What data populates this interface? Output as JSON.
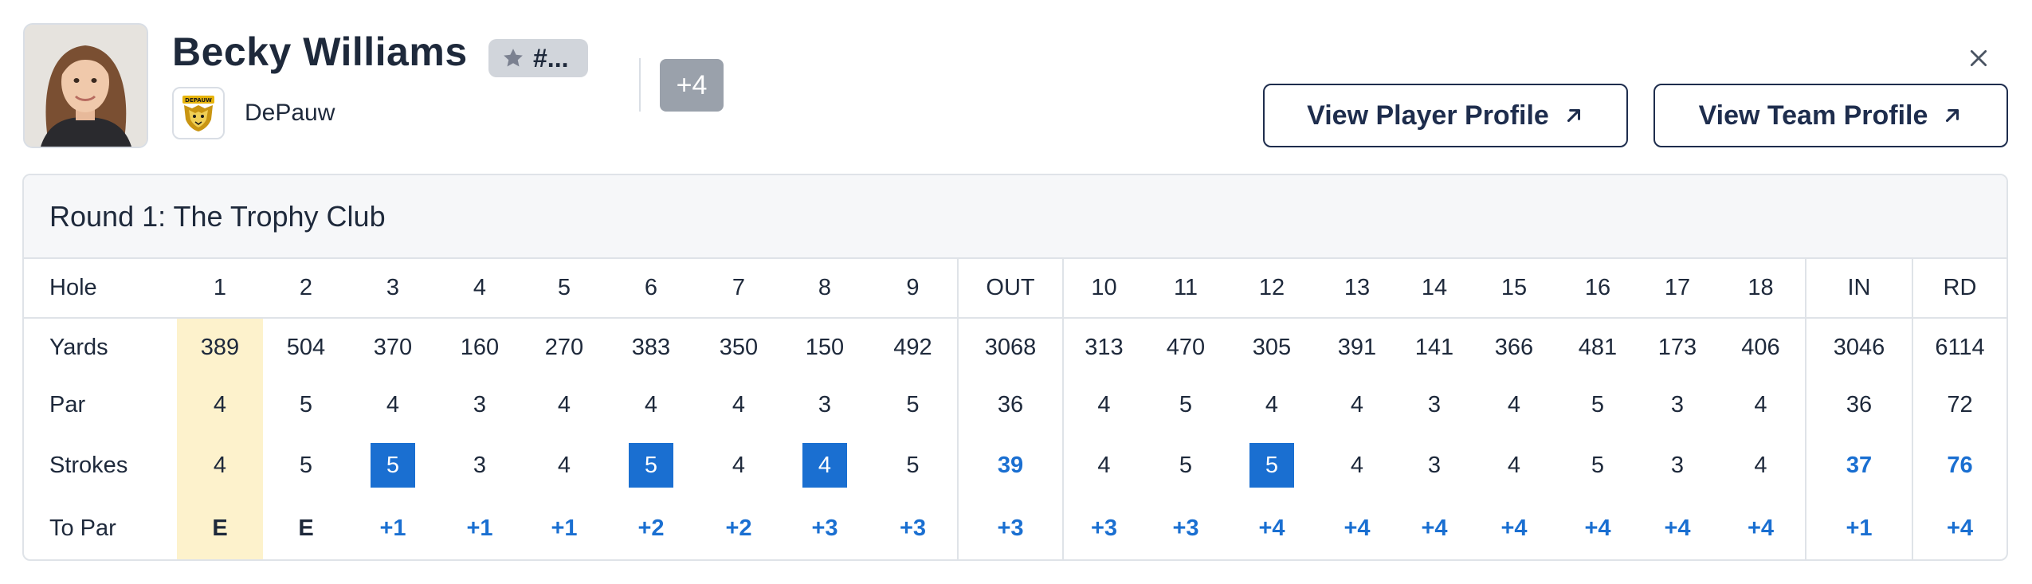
{
  "player": {
    "name": "Becky Williams",
    "rank_label": "#...",
    "team": "DePauw",
    "score_to_par": "+4",
    "logo_text": "DEPAUW"
  },
  "actions": {
    "view_player_profile": "View Player Profile",
    "view_team_profile": "View Team Profile"
  },
  "icons": {
    "rank": "star-icon",
    "external": "arrow-up-right-icon",
    "close": "close-icon"
  },
  "colors": {
    "accent_blue": "#1a6fd1",
    "highlight_column": "#fdf2cc",
    "score_badge": "#9aa1ab",
    "button_border": "#1e2d4d"
  },
  "round": {
    "title": "Round 1: The Trophy Club",
    "row_labels": {
      "hole": "Hole",
      "yards": "Yards",
      "par": "Par",
      "strokes": "Strokes",
      "to_par": "To Par"
    },
    "columns": [
      {
        "hole": "1",
        "yards": "389",
        "par": "4",
        "strokes": "4",
        "to_par": "E"
      },
      {
        "hole": "2",
        "yards": "504",
        "par": "5",
        "strokes": "5",
        "to_par": "E"
      },
      {
        "hole": "3",
        "yards": "370",
        "par": "4",
        "strokes": "5",
        "to_par": "+1"
      },
      {
        "hole": "4",
        "yards": "160",
        "par": "3",
        "strokes": "3",
        "to_par": "+1"
      },
      {
        "hole": "5",
        "yards": "270",
        "par": "4",
        "strokes": "4",
        "to_par": "+1"
      },
      {
        "hole": "6",
        "yards": "383",
        "par": "4",
        "strokes": "5",
        "to_par": "+2"
      },
      {
        "hole": "7",
        "yards": "350",
        "par": "4",
        "strokes": "4",
        "to_par": "+2"
      },
      {
        "hole": "8",
        "yards": "150",
        "par": "3",
        "strokes": "4",
        "to_par": "+3"
      },
      {
        "hole": "9",
        "yards": "492",
        "par": "5",
        "strokes": "5",
        "to_par": "+3"
      },
      {
        "hole": "OUT",
        "yards": "3068",
        "par": "36",
        "strokes": "39",
        "to_par": "+3"
      },
      {
        "hole": "10",
        "yards": "313",
        "par": "4",
        "strokes": "4",
        "to_par": "+3"
      },
      {
        "hole": "11",
        "yards": "470",
        "par": "5",
        "strokes": "5",
        "to_par": "+3"
      },
      {
        "hole": "12",
        "yards": "305",
        "par": "4",
        "strokes": "5",
        "to_par": "+4"
      },
      {
        "hole": "13",
        "yards": "391",
        "par": "4",
        "strokes": "4",
        "to_par": "+4"
      },
      {
        "hole": "14",
        "yards": "141",
        "par": "3",
        "strokes": "3",
        "to_par": "+4"
      },
      {
        "hole": "15",
        "yards": "366",
        "par": "4",
        "strokes": "4",
        "to_par": "+4"
      },
      {
        "hole": "16",
        "yards": "481",
        "par": "5",
        "strokes": "5",
        "to_par": "+4"
      },
      {
        "hole": "17",
        "yards": "173",
        "par": "3",
        "strokes": "3",
        "to_par": "+4"
      },
      {
        "hole": "18",
        "yards": "406",
        "par": "4",
        "strokes": "4",
        "to_par": "+4"
      },
      {
        "hole": "IN",
        "yards": "3046",
        "par": "36",
        "strokes": "37",
        "to_par": "+1"
      },
      {
        "hole": "RD",
        "yards": "6114",
        "par": "72",
        "strokes": "76",
        "to_par": "+4"
      }
    ]
  }
}
